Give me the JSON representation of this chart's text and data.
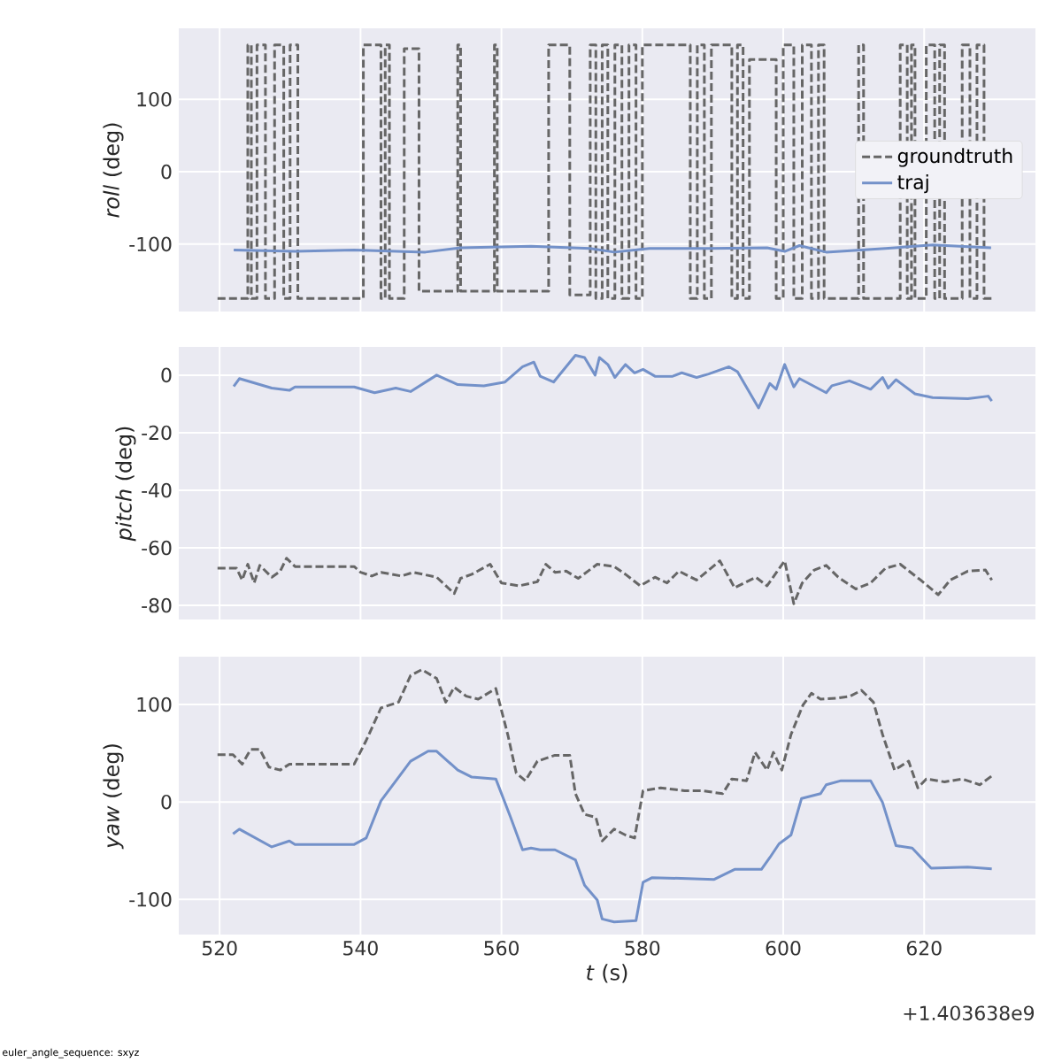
{
  "chart_data": [
    {
      "type": "line",
      "ylabel": "*roll* (deg)",
      "xlim": [
        514.2,
        635.8
      ],
      "ylim": [
        -193,
        198
      ],
      "xticks": [
        520,
        540,
        560,
        580,
        600,
        620
      ],
      "yticks": [
        -100,
        0,
        100
      ],
      "tick_labels": "y",
      "grid": true,
      "legend": "right",
      "series": [
        {
          "name": "groundtruth",
          "color": "#666666",
          "line_style": "dashed",
          "x": [
            519.7,
            524.0,
            524.0,
            524.5,
            524.5,
            525.3,
            525.3,
            526.5,
            526.5,
            527.8,
            527.8,
            529.1,
            529.1,
            530.0,
            530.0,
            531.1,
            531.1,
            540.4,
            540.4,
            542.9,
            542.9,
            543.5,
            543.5,
            544.1,
            544.1,
            546.2,
            546.2,
            548.3,
            548.3,
            553.8,
            553.8,
            554.2,
            554.2,
            559.0,
            559.0,
            559.4,
            559.4,
            566.7,
            566.7,
            569.7,
            569.7,
            572.6,
            572.6,
            573.4,
            573.4,
            574.3,
            574.3,
            575.1,
            575.1,
            576.1,
            576.1,
            577.1,
            577.1,
            578.1,
            578.1,
            579.1,
            579.1,
            580.0,
            580.0,
            586.8,
            586.8,
            587.8,
            587.8,
            588.8,
            588.8,
            589.8,
            589.8,
            592.7,
            592.7,
            593.5,
            593.5,
            594.3,
            594.3,
            595.2,
            595.2,
            599.0,
            599.0,
            600.0,
            600.0,
            601.5,
            601.5,
            602.7,
            602.7,
            604.0,
            604.0,
            605.0,
            605.0,
            605.8,
            605.8,
            610.7,
            610.7,
            611.4,
            611.4,
            616.6,
            616.6,
            617.6,
            617.6,
            618.2,
            618.2,
            618.7,
            618.7,
            620.3,
            620.3,
            621.5,
            621.5,
            622.2,
            622.2,
            622.9,
            622.9,
            625.4,
            625.4,
            626.5,
            626.5,
            627.5,
            627.5,
            628.5,
            628.5,
            630.0
          ],
          "values": [
            -175,
            -175,
            175,
            175,
            -175,
            -175,
            175,
            175,
            -175,
            -175,
            175,
            175,
            -175,
            -175,
            175,
            175,
            -175,
            -175,
            175,
            175,
            -175,
            -175,
            175,
            175,
            -175,
            -175,
            170,
            170,
            -165,
            -165,
            175,
            175,
            -165,
            -165,
            175,
            175,
            -165,
            -165,
            175,
            175,
            -170,
            -170,
            175,
            175,
            -175,
            -175,
            175,
            175,
            -175,
            -175,
            175,
            175,
            -175,
            -175,
            175,
            175,
            -175,
            -175,
            175,
            175,
            -175,
            -175,
            175,
            175,
            -175,
            -175,
            175,
            175,
            -175,
            -175,
            175,
            175,
            -175,
            -175,
            155,
            155,
            -175,
            -175,
            175,
            175,
            -175,
            -175,
            175,
            175,
            -175,
            -175,
            175,
            175,
            -175,
            -175,
            175,
            175,
            -175,
            -175,
            175,
            175,
            -175,
            -175,
            175,
            175,
            -175,
            -175,
            175,
            175,
            -175,
            -175,
            175,
            175,
            -175,
            -175,
            175,
            175,
            -175,
            -175,
            175,
            175,
            -175,
            -175
          ]
        },
        {
          "name": "traj",
          "color": "#7391c9",
          "line_style": "solid",
          "x": [
            522.0,
            530.7,
            539.1,
            549.2,
            554.2,
            564.2,
            572.6,
            576.0,
            581.0,
            589.4,
            597.7,
            600.2,
            602.3,
            606.1,
            614.5,
            621.2,
            629.5
          ],
          "values": [
            -108,
            -110,
            -108,
            -111,
            -105,
            -103,
            -106,
            -111,
            -106,
            -106,
            -105,
            -110,
            -102,
            -111,
            -106,
            -101,
            -105
          ]
        }
      ]
    },
    {
      "type": "line",
      "ylabel": "*pitch* (deg)",
      "xlim": [
        514.2,
        635.8
      ],
      "ylim": [
        -84.9,
        9.8
      ],
      "xticks": [
        520,
        540,
        560,
        580,
        600,
        620
      ],
      "yticks": [
        -80,
        -60,
        -40,
        -20,
        0
      ],
      "tick_labels": "y",
      "grid": true,
      "series": [
        {
          "color": "#666666",
          "line_style": "dashed",
          "x": [
            519.7,
            522.4,
            523.2,
            524.0,
            524.9,
            525.7,
            527.4,
            528.6,
            529.5,
            530.7,
            539.1,
            540.0,
            541.6,
            542.9,
            545.8,
            547.5,
            550.8,
            553.3,
            554.2,
            555.8,
            558.4,
            560.0,
            562.5,
            565.1,
            566.3,
            567.6,
            569.2,
            570.9,
            573.6,
            576.0,
            577.6,
            579.7,
            581.8,
            583.5,
            585.2,
            587.7,
            591.0,
            593.1,
            596.1,
            597.7,
            600.2,
            601.5,
            602.7,
            604.4,
            606.1,
            607.8,
            610.3,
            612.4,
            614.5,
            616.6,
            619.5,
            622.0,
            623.7,
            626.2,
            628.7,
            629.6
          ],
          "values": [
            -67.1,
            -67.1,
            -71.2,
            -65.7,
            -72.2,
            -66.1,
            -70.2,
            -68.1,
            -63.6,
            -66.5,
            -66.5,
            -68.5,
            -69.8,
            -68.5,
            -69.8,
            -68.5,
            -70.2,
            -75.9,
            -70.6,
            -69.2,
            -65.7,
            -72.2,
            -73.2,
            -71.8,
            -65.7,
            -68.5,
            -68.1,
            -70.6,
            -65.7,
            -66.5,
            -69.2,
            -73.2,
            -70.2,
            -72.2,
            -68.1,
            -71.2,
            -64.5,
            -73.9,
            -70.2,
            -73.2,
            -64.5,
            -79.4,
            -72.2,
            -67.7,
            -66.1,
            -70.2,
            -74.3,
            -72.2,
            -67.1,
            -65.7,
            -71.2,
            -76.3,
            -71.2,
            -68.1,
            -67.7,
            -71.2
          ]
        },
        {
          "color": "#7391c9",
          "line_style": "solid",
          "x": [
            522.0,
            522.8,
            527.4,
            529.9,
            530.7,
            539.1,
            542.0,
            545.0,
            547.1,
            550.8,
            553.8,
            557.5,
            560.5,
            563.0,
            564.6,
            565.5,
            567.4,
            570.5,
            571.8,
            573.3,
            573.9,
            575.1,
            576.1,
            577.6,
            578.9,
            580.1,
            581.8,
            584.3,
            585.6,
            587.7,
            589.4,
            592.3,
            593.5,
            596.5,
            598.1,
            599.0,
            600.2,
            601.5,
            602.3,
            606.1,
            606.9,
            609.4,
            612.4,
            614.1,
            614.9,
            616.0,
            618.7,
            621.2,
            626.2,
            629.1,
            629.6
          ],
          "values": [
            -3.9,
            -1.2,
            -4.5,
            -5.3,
            -4.1,
            -4.1,
            -6.1,
            -4.5,
            -5.7,
            0,
            -3.3,
            -3.7,
            -2.4,
            2.9,
            4.5,
            -0.4,
            -2.4,
            6.9,
            6.1,
            0,
            6.1,
            3.7,
            -0.8,
            3.7,
            0.8,
            2.0,
            -0.4,
            -0.4,
            0.8,
            -0.8,
            0.4,
            2.9,
            1.2,
            -11.4,
            -2.9,
            -4.9,
            3.7,
            -4.1,
            -1.2,
            -6.1,
            -3.7,
            -2.0,
            -4.9,
            -0.8,
            -4.5,
            -1.6,
            -6.5,
            -7.8,
            -8.2,
            -7.3,
            -9.0
          ]
        }
      ]
    },
    {
      "type": "line",
      "ylabel": "*yaw* (deg)",
      "xlabel": "*t* (s)",
      "xlim": [
        514.2,
        635.8
      ],
      "ylim": [
        -136,
        149
      ],
      "xticks": [
        520,
        540,
        560,
        580,
        600,
        620
      ],
      "yticks": [
        -100,
        0,
        100
      ],
      "grid": true,
      "annotations": [
        "+1.403638e9",
        "euler_angle_sequence: sxyz"
      ],
      "series": [
        {
          "color": "#666666",
          "line_style": "dashed",
          "x": [
            519.7,
            521.9,
            523.2,
            524.4,
            525.7,
            527.0,
            528.6,
            529.9,
            539.1,
            540.8,
            542.9,
            545.4,
            547.1,
            548.7,
            550.8,
            552.1,
            553.3,
            555.0,
            556.7,
            559.2,
            560.9,
            562.1,
            563.4,
            565.1,
            567.6,
            569.7,
            570.5,
            571.8,
            573.4,
            574.3,
            576.0,
            577.6,
            578.9,
            580.1,
            582.6,
            586.0,
            588.5,
            591.4,
            592.7,
            594.8,
            596.0,
            597.7,
            598.6,
            599.8,
            601.1,
            602.8,
            604.0,
            605.3,
            607.8,
            609.5,
            611.1,
            612.8,
            614.1,
            615.8,
            617.8,
            619.1,
            620.3,
            622.9,
            625.4,
            627.9,
            629.6
          ],
          "values": [
            48.5,
            48.5,
            38.8,
            53.9,
            53.9,
            35.8,
            32.7,
            38.8,
            38.8,
            63.0,
            96.4,
            102.4,
            129.7,
            135.7,
            126.7,
            102.4,
            117.6,
            108.5,
            105.4,
            116.4,
            69.1,
            29.7,
            21.8,
            41.8,
            47.9,
            47.9,
            8.5,
            -12.7,
            -15.8,
            -40.0,
            -27.9,
            -33.9,
            -37.0,
            11.5,
            14.5,
            11.5,
            11.5,
            8.5,
            23.6,
            21.8,
            50.9,
            32.7,
            50.9,
            32.7,
            69.1,
            99.4,
            111.5,
            105.4,
            106.6,
            108.5,
            114.5,
            102.4,
            69.1,
            32.7,
            41.8,
            14.5,
            23.6,
            20.6,
            23.6,
            17.6,
            26.7
          ]
        },
        {
          "color": "#7391c9",
          "line_style": "solid",
          "x": [
            521.9,
            522.8,
            527.4,
            529.9,
            530.7,
            539.1,
            540.8,
            542.9,
            547.1,
            549.6,
            550.8,
            553.8,
            555.8,
            559.2,
            561.3,
            563.0,
            564.2,
            565.5,
            567.6,
            570.5,
            571.8,
            573.6,
            574.3,
            576.0,
            579.1,
            580.1,
            581.4,
            590.2,
            593.1,
            596.9,
            598.1,
            599.4,
            601.1,
            602.6,
            605.3,
            606.1,
            608.2,
            612.4,
            614.1,
            616.0,
            618.3,
            621.0,
            626.2,
            629.6
          ],
          "values": [
            -32.7,
            -27.9,
            -46.1,
            -40.0,
            -43.6,
            -43.6,
            -37.0,
            1.2,
            41.8,
            52.1,
            52.1,
            32.7,
            25.5,
            23.6,
            -15.8,
            -49.1,
            -47.3,
            -49.1,
            -49.1,
            -59.4,
            -85.4,
            -100.6,
            -120.0,
            -123.0,
            -121.8,
            -82.4,
            -77.6,
            -79.4,
            -69.1,
            -69.1,
            -57.0,
            -43.0,
            -33.9,
            3.6,
            8.5,
            17.6,
            21.8,
            21.8,
            -0.6,
            -44.8,
            -47.3,
            -67.9,
            -66.7,
            -68.5
          ]
        }
      ]
    }
  ]
}
